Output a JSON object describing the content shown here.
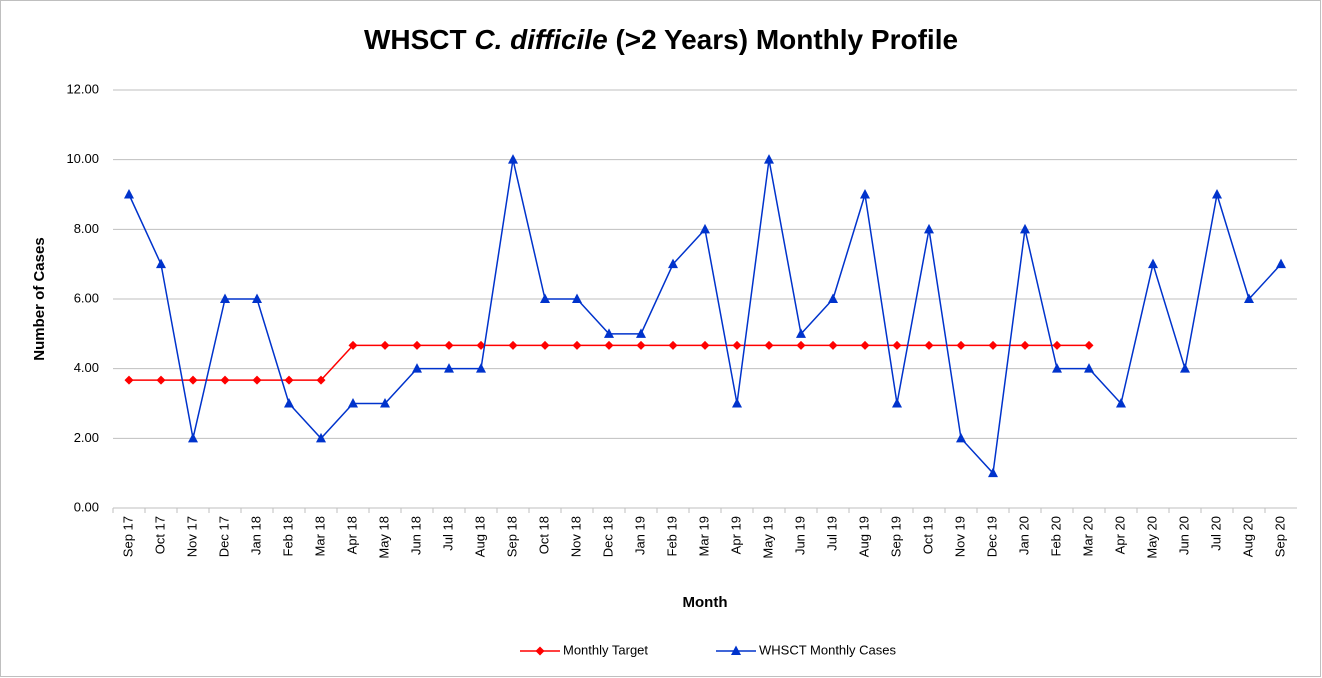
{
  "chart_data": {
    "type": "line",
    "title": [
      "WHSCT ",
      "C. difficile",
      " (>2 Years) Monthly Profile"
    ],
    "x_label": "Month",
    "y_label": "Number of Cases",
    "categories": [
      "Sep 17",
      "Oct 17",
      "Nov 17",
      "Dec 17",
      "Jan 18",
      "Feb 18",
      "Mar 18",
      "Apr 18",
      "May 18",
      "Jun 18",
      "Jul 18",
      "Aug 18",
      "Sep 18",
      "Oct 18",
      "Nov 18",
      "Dec 18",
      "Jan 19",
      "Feb 19",
      "Mar 19",
      "Apr 19",
      "May 19",
      "Jun 19",
      "Jul 19",
      "Aug 19",
      "Sep 19",
      "Oct 19",
      "Nov 19",
      "Dec 19",
      "Jan 20",
      "Feb 20",
      "Mar 20",
      "Apr 20",
      "May 20",
      "Jun 20",
      "Jul 20",
      "Aug 20",
      "Sep 20"
    ],
    "series": [
      {
        "name": "Monthly Target",
        "color": "#ff0000",
        "marker": "diamond",
        "values": [
          3.67,
          3.67,
          3.67,
          3.67,
          3.67,
          3.67,
          3.67,
          4.67,
          4.67,
          4.67,
          4.67,
          4.67,
          4.67,
          4.67,
          4.67,
          4.67,
          4.67,
          4.67,
          4.67,
          4.67,
          4.67,
          4.67,
          4.67,
          4.67,
          4.67,
          4.67,
          4.67,
          4.67,
          4.67,
          4.67,
          4.67,
          null,
          null,
          null,
          null,
          null,
          null
        ]
      },
      {
        "name": "WHSCT Monthly Cases",
        "color": "#0033cc",
        "marker": "triangle",
        "values": [
          9,
          7,
          2,
          6,
          6,
          3,
          2,
          3,
          3,
          4,
          4,
          4,
          10,
          6,
          6,
          5,
          5,
          7,
          8,
          3,
          10,
          5,
          6,
          9,
          3,
          8,
          2,
          1,
          8,
          4,
          4,
          3,
          7,
          4,
          9,
          6,
          7
        ]
      }
    ],
    "ylim": [
      0,
      12
    ],
    "yticks": [
      {
        "value": 0,
        "label": "0.00"
      },
      {
        "value": 2,
        "label": "2.00"
      },
      {
        "value": 4,
        "label": "4.00"
      },
      {
        "value": 6,
        "label": "6.00"
      },
      {
        "value": 8,
        "label": "8.00"
      },
      {
        "value": 10,
        "label": "10.00"
      },
      {
        "value": 12,
        "label": "12.00"
      }
    ],
    "grid": true,
    "legend": "bottom"
  }
}
